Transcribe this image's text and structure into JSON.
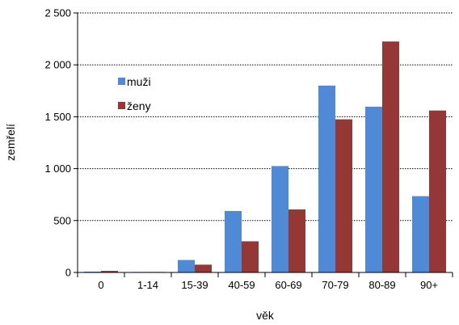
{
  "chart_data": {
    "type": "bar",
    "categories": [
      "0",
      "1-14",
      "15-39",
      "40-59",
      "60-69",
      "70-79",
      "80-89",
      "90+"
    ],
    "series": [
      {
        "name": "muži",
        "values": [
          8,
          5,
          120,
          592,
          1025,
          1800,
          1597,
          735
        ],
        "color": "#4f8ad6"
      },
      {
        "name": "ženy",
        "values": [
          15,
          5,
          75,
          300,
          607,
          1475,
          2225,
          1560
        ],
        "color": "#953735"
      }
    ],
    "title": "",
    "xlabel": "věk",
    "ylabel": "zemřelí",
    "ylim": [
      0,
      2500
    ],
    "yticks": [
      0,
      500,
      1000,
      1500,
      2000,
      2500
    ],
    "ytick_labels": [
      "0",
      "500",
      "1 000",
      "1 500",
      "2 000",
      "2 500"
    ],
    "grid": "horizontal-dashed",
    "legend": "upper-left inside plot"
  }
}
